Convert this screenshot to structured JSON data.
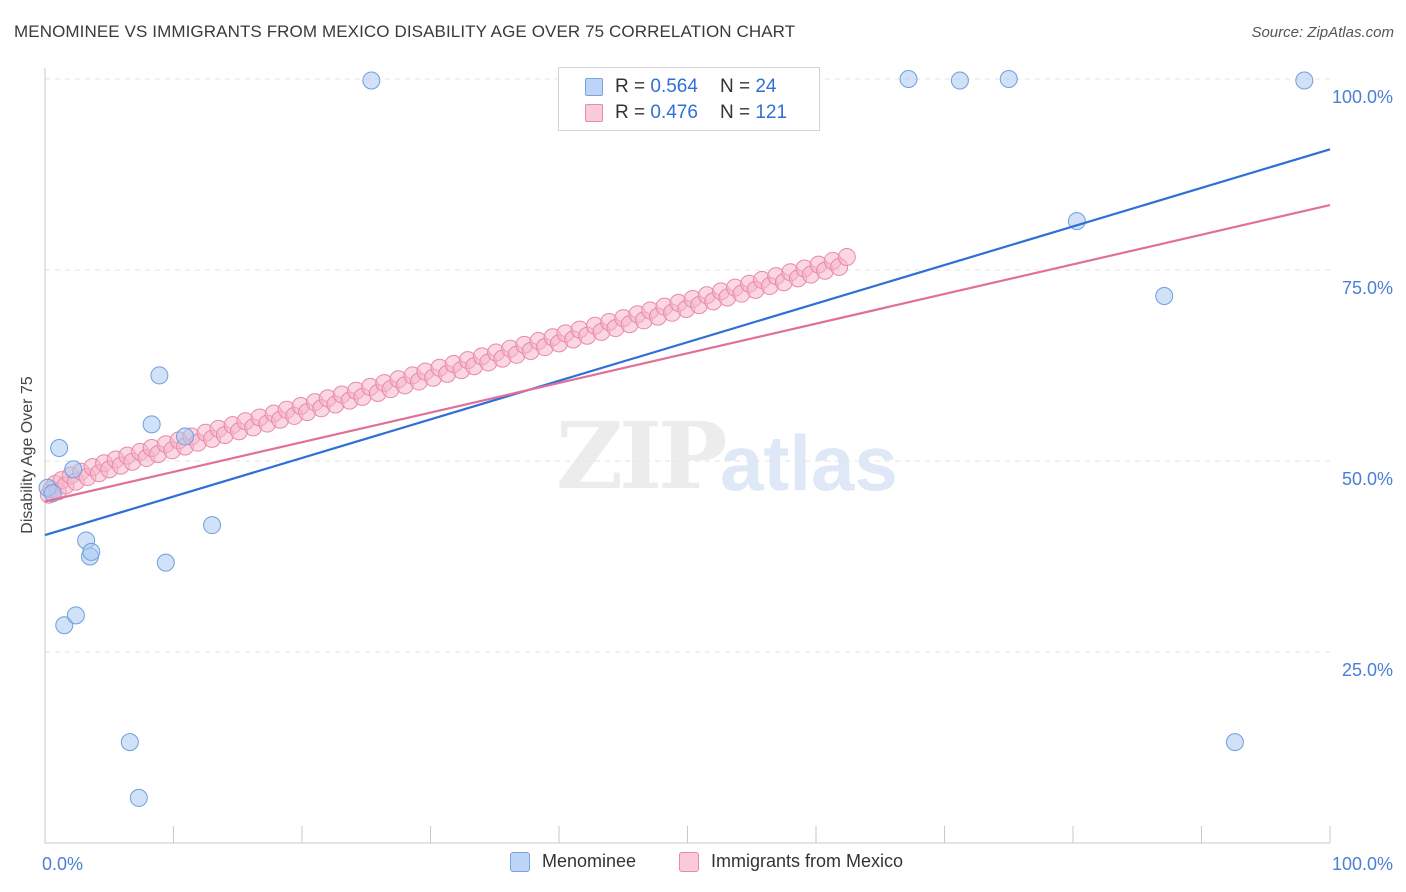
{
  "header": {
    "title": "MENOMINEE VS IMMIGRANTS FROM MEXICO DISABILITY AGE OVER 75 CORRELATION CHART",
    "source": "Source: ZipAtlas.com"
  },
  "watermark": {
    "zip": "ZIP",
    "atlas": "atlas"
  },
  "legend": {
    "rows": [
      {
        "r_label": "R =",
        "r_value": "0.564",
        "n_label": "N =",
        "n_value": "24",
        "color": "#a9c8f2"
      },
      {
        "r_label": "R =",
        "r_value": "0.476",
        "n_label": "N =",
        "n_value": "121",
        "color": "#f6b7cb"
      }
    ]
  },
  "chart_data": {
    "type": "scatter",
    "title": "MENOMINEE VS IMMIGRANTS FROM MEXICO DISABILITY AGE OVER 75 CORRELATION CHART",
    "xlabel": "",
    "ylabel": "Disability Age Over 75",
    "xlim": [
      0,
      100
    ],
    "ylim": [
      0,
      100
    ],
    "x_ticks": [
      0,
      10,
      20,
      30,
      40,
      50,
      60,
      70,
      80,
      90,
      100
    ],
    "x_tick_labels": [
      "0.0%",
      "100.0%"
    ],
    "y_ticks": [
      25,
      50,
      75,
      100
    ],
    "y_tick_labels": [
      "25.0%",
      "50.0%",
      "75.0%",
      "100.0%"
    ],
    "grid": "dashed-horizontal",
    "legend_position": "bottom-center",
    "series": [
      {
        "name": "Menominee",
        "color": "#a9c8f2",
        "stroke": "#6f9fdc",
        "line_color": "#2f6fd6",
        "trend": [
          [
            0,
            40.3
          ],
          [
            100,
            90.8
          ]
        ],
        "x": [
          0.2,
          1.1,
          2.2,
          0.6,
          1.5,
          2.4,
          3.2,
          3.5,
          3.6,
          6.6,
          7.3,
          8.3,
          8.9,
          9.4,
          10.9,
          13.0,
          25.4,
          67.2,
          71.2,
          75.0,
          80.3,
          87.1,
          92.6,
          98.0
        ],
        "y": [
          46.5,
          51.7,
          48.9,
          45.8,
          28.5,
          29.8,
          39.6,
          37.5,
          38.1,
          13.2,
          5.9,
          54.8,
          61.2,
          36.7,
          53.2,
          41.6,
          99.8,
          100.0,
          99.8,
          100.0,
          81.4,
          71.6,
          13.2,
          99.8
        ]
      },
      {
        "name": "Immigrants from Mexico",
        "color": "#f6b7cb",
        "stroke": "#e88aa8",
        "line_color": "#e0709a",
        "trend": [
          [
            0,
            44.7
          ],
          [
            100,
            83.5
          ]
        ],
        "x": [
          0.3,
          0.5,
          0.8,
          1.0,
          1.3,
          1.6,
          2.0,
          2.4,
          2.8,
          3.3,
          3.7,
          4.2,
          4.6,
          5.0,
          5.5,
          5.9,
          6.4,
          6.8,
          7.4,
          7.9,
          8.3,
          8.8,
          9.4,
          9.9,
          10.4,
          10.9,
          11.4,
          11.9,
          12.5,
          13.0,
          13.5,
          14.0,
          14.6,
          15.1,
          15.6,
          16.2,
          16.7,
          17.3,
          17.8,
          18.3,
          18.8,
          19.4,
          19.9,
          20.4,
          21.0,
          21.5,
          22.0,
          22.6,
          23.1,
          23.7,
          24.2,
          24.7,
          25.3,
          25.9,
          26.4,
          26.9,
          27.5,
          28.0,
          28.6,
          29.1,
          29.6,
          30.2,
          30.7,
          31.3,
          31.8,
          32.4,
          32.9,
          33.4,
          34.0,
          34.5,
          35.1,
          35.6,
          36.2,
          36.7,
          37.3,
          37.8,
          38.4,
          38.9,
          39.5,
          40.0,
          40.5,
          41.1,
          41.6,
          42.2,
          42.8,
          43.3,
          43.9,
          44.4,
          45.0,
          45.5,
          46.1,
          46.6,
          47.1,
          47.7,
          48.2,
          48.8,
          49.3,
          49.9,
          50.4,
          50.9,
          51.5,
          52.0,
          52.6,
          53.1,
          53.7,
          54.2,
          54.8,
          55.3,
          55.8,
          56.4,
          56.9,
          57.5,
          58.0,
          58.6,
          59.1,
          59.6,
          60.2,
          60.7,
          61.3,
          61.8,
          62.4
        ],
        "y": [
          45.6,
          46.3,
          47.0,
          46.0,
          47.5,
          46.8,
          48.1,
          47.3,
          48.6,
          47.9,
          49.2,
          48.4,
          49.7,
          48.9,
          50.2,
          49.4,
          50.7,
          49.9,
          51.2,
          50.4,
          51.7,
          50.9,
          52.2,
          51.4,
          52.7,
          51.9,
          53.2,
          52.4,
          53.7,
          52.9,
          54.2,
          53.4,
          54.7,
          53.9,
          55.2,
          54.4,
          55.7,
          54.9,
          56.2,
          55.4,
          56.7,
          55.9,
          57.2,
          56.4,
          57.7,
          56.9,
          58.2,
          57.4,
          58.7,
          57.9,
          59.2,
          58.4,
          59.7,
          58.9,
          60.2,
          59.4,
          60.7,
          59.9,
          61.2,
          60.4,
          61.7,
          60.9,
          62.2,
          61.4,
          62.7,
          61.9,
          63.2,
          62.4,
          63.7,
          62.9,
          64.2,
          63.4,
          64.7,
          63.9,
          65.2,
          64.4,
          65.7,
          64.9,
          66.2,
          65.4,
          66.7,
          65.9,
          67.2,
          66.4,
          67.7,
          66.9,
          68.2,
          67.4,
          68.7,
          67.9,
          69.2,
          68.4,
          69.7,
          68.9,
          70.2,
          69.4,
          70.7,
          69.9,
          71.2,
          70.4,
          71.7,
          70.9,
          72.2,
          71.4,
          72.7,
          71.9,
          73.2,
          72.4,
          73.7,
          72.9,
          74.2,
          73.4,
          74.7,
          73.9,
          75.2,
          74.4,
          75.7,
          74.9,
          76.2,
          75.4,
          76.7
        ]
      }
    ]
  }
}
